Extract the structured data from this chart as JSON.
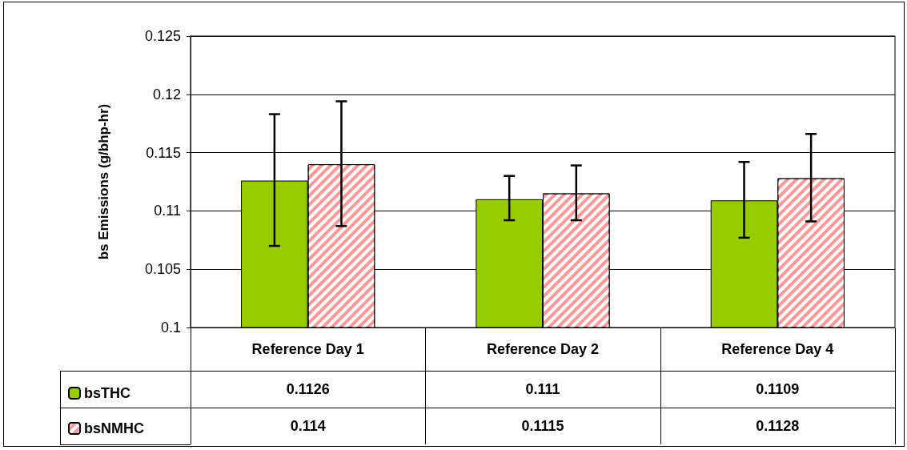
{
  "chart_data": {
    "type": "bar",
    "ylabel": "bs Emissions (g/bhp-hr)",
    "categories": [
      "Reference Day 1",
      "Reference Day 2",
      "Reference Day 4"
    ],
    "series": [
      {
        "name": "bsTHC",
        "color": "#99cc00",
        "values": [
          0.1126,
          0.111,
          0.1109
        ],
        "errors": [
          [
            0.107,
            0.1183
          ],
          [
            0.1092,
            0.113
          ],
          [
            0.1077,
            0.1142
          ]
        ]
      },
      {
        "name": "bsNMHC",
        "color": "#ff9999",
        "values": [
          0.114,
          0.1115,
          0.1128
        ],
        "errors": [
          [
            0.1087,
            0.1194
          ],
          [
            0.1092,
            0.1139
          ],
          [
            0.1091,
            0.1166
          ]
        ]
      }
    ],
    "ylim": [
      0.1,
      0.125
    ],
    "yticks": [
      0.1,
      0.105,
      0.11,
      0.115,
      0.12,
      0.125
    ],
    "grid": "y",
    "legend": "bottom left",
    "data_labels": true
  }
}
